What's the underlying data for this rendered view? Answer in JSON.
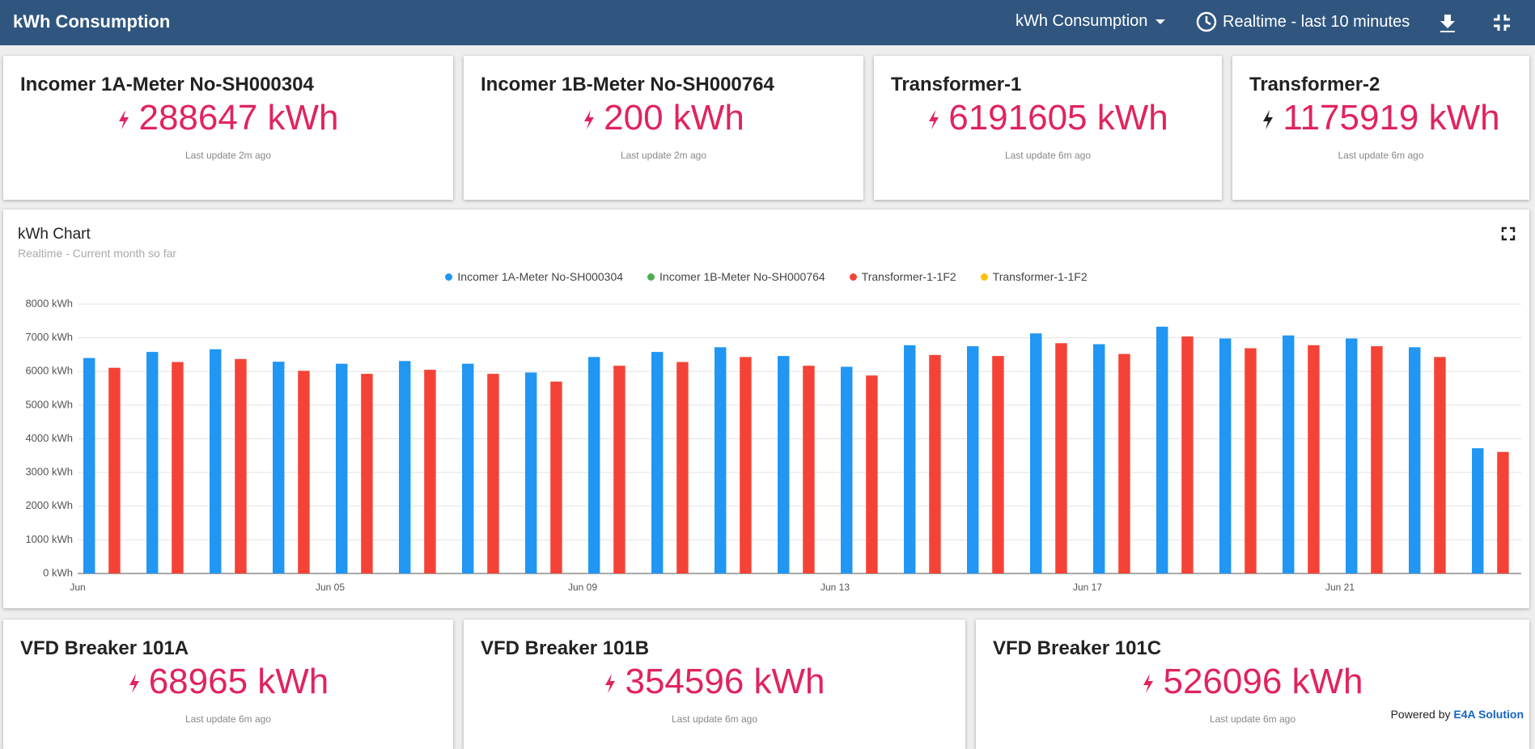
{
  "header": {
    "title": "kWh Consumption",
    "dashboard": "kWh Consumption",
    "timewindow": "Realtime - last 10 minutes"
  },
  "cards_top": [
    {
      "title": "Incomer 1A-Meter No-SH000304",
      "value": "288647 kWh",
      "updated": "Last update 2m ago",
      "icon_color": "#e0245e"
    },
    {
      "title": "Incomer 1B-Meter No-SH000764",
      "value": "200 kWh",
      "updated": "Last update 2m ago",
      "icon_color": "#e0245e"
    },
    {
      "title": "Transformer-1",
      "value": "6191605 kWh",
      "updated": "Last update 6m ago",
      "icon_color": "#e0245e"
    },
    {
      "title": "Transformer-2",
      "value": "1175919 kWh",
      "updated": "Last update 6m ago",
      "icon_color": "#222222"
    }
  ],
  "cards_bottom": [
    {
      "title": "VFD Breaker 101A",
      "value": "68965 kWh",
      "updated": "Last update 6m ago",
      "icon_color": "#e0245e"
    },
    {
      "title": "VFD Breaker 101B",
      "value": "354596 kWh",
      "updated": "Last update 6m ago",
      "icon_color": "#e0245e"
    },
    {
      "title": "VFD Breaker 101C",
      "value": "526096 kWh",
      "updated": "Last update 6m ago",
      "icon_color": "#e0245e"
    }
  ],
  "chart_data": {
    "type": "bar",
    "title": "kWh Chart",
    "subtitle": "Realtime - Current month so far",
    "categories": [
      "Jun",
      null,
      null,
      null,
      "Jun 05",
      null,
      null,
      null,
      "Jun 09",
      null,
      null,
      null,
      "Jun 13",
      null,
      null,
      null,
      "Jun 17",
      null,
      null,
      null,
      "Jun 21",
      null,
      null
    ],
    "series": [
      {
        "name": "Incomer 1A-Meter No-SH000304",
        "color": "#2196f3",
        "values": [
          6400,
          6580,
          6660,
          6290,
          6230,
          6310,
          6230,
          5970,
          6430,
          6580,
          6720,
          6460,
          6140,
          6780,
          6750,
          7130,
          6810,
          7330,
          6980,
          7070,
          6980,
          6720,
          3720
        ]
      },
      {
        "name": "Incomer 1B-Meter No-SH000764",
        "color": "#4caf50",
        "values": [
          null,
          null,
          null,
          null,
          null,
          null,
          null,
          null,
          null,
          null,
          null,
          null,
          null,
          null,
          null,
          null,
          null,
          null,
          null,
          null,
          null,
          null,
          null
        ]
      },
      {
        "name": "Transformer-1-1F2",
        "color": "#f44336",
        "values": [
          6110,
          6280,
          6370,
          6020,
          5930,
          6050,
          5930,
          5700,
          6170,
          6280,
          6430,
          6170,
          5880,
          6490,
          6460,
          6840,
          6520,
          7040,
          6690,
          6780,
          6750,
          6430,
          3610
        ]
      },
      {
        "name": "Transformer-1-1F2",
        "color": "#ffc107",
        "values": [
          null,
          null,
          null,
          null,
          null,
          null,
          null,
          null,
          null,
          null,
          null,
          null,
          null,
          null,
          null,
          null,
          null,
          null,
          null,
          null,
          null,
          null,
          null
        ]
      }
    ],
    "ylim": [
      0,
      8000
    ],
    "yticks": [
      {
        "value": 0,
        "label": "0 kWh"
      },
      {
        "value": 1000,
        "label": "1000 kWh"
      },
      {
        "value": 2000,
        "label": "2000 kWh"
      },
      {
        "value": 3000,
        "label": "3000 kWh"
      },
      {
        "value": 4000,
        "label": "4000 kWh"
      },
      {
        "value": 5000,
        "label": "5000 kWh"
      },
      {
        "value": 6000,
        "label": "6000 kWh"
      },
      {
        "value": 7000,
        "label": "7000 kWh"
      },
      {
        "value": 8000,
        "label": "8000 kWh"
      }
    ],
    "grid": true
  },
  "footer": {
    "prefix": "Powered by",
    "brand": "E4A Solution"
  }
}
